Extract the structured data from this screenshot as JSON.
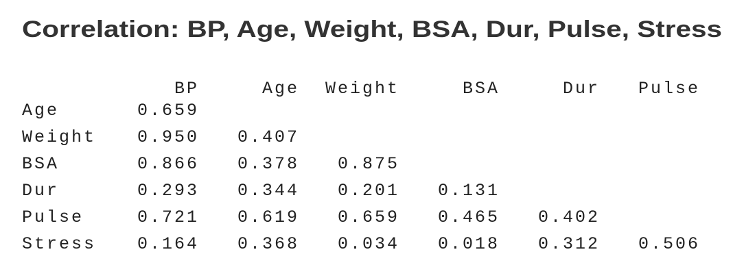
{
  "title": "Correlation: BP, Age, Weight, BSA, Dur, Pulse, Stress",
  "table": {
    "header": [
      "BP",
      "Age",
      "Weight",
      "BSA",
      "Dur",
      "Pulse"
    ],
    "rows": [
      {
        "label": "Age",
        "values": [
          "0.659"
        ]
      },
      {
        "label": "Weight",
        "values": [
          "0.950",
          "0.407"
        ]
      },
      {
        "label": "BSA",
        "values": [
          "0.866",
          "0.378",
          "0.875"
        ]
      },
      {
        "label": "Dur",
        "values": [
          "0.293",
          "0.344",
          "0.201",
          "0.131"
        ]
      },
      {
        "label": "Pulse",
        "values": [
          "0.721",
          "0.619",
          "0.659",
          "0.465",
          "0.402"
        ]
      },
      {
        "label": "Stress",
        "values": [
          "0.164",
          "0.368",
          "0.034",
          "0.018",
          "0.312",
          "0.506"
        ]
      }
    ]
  }
}
